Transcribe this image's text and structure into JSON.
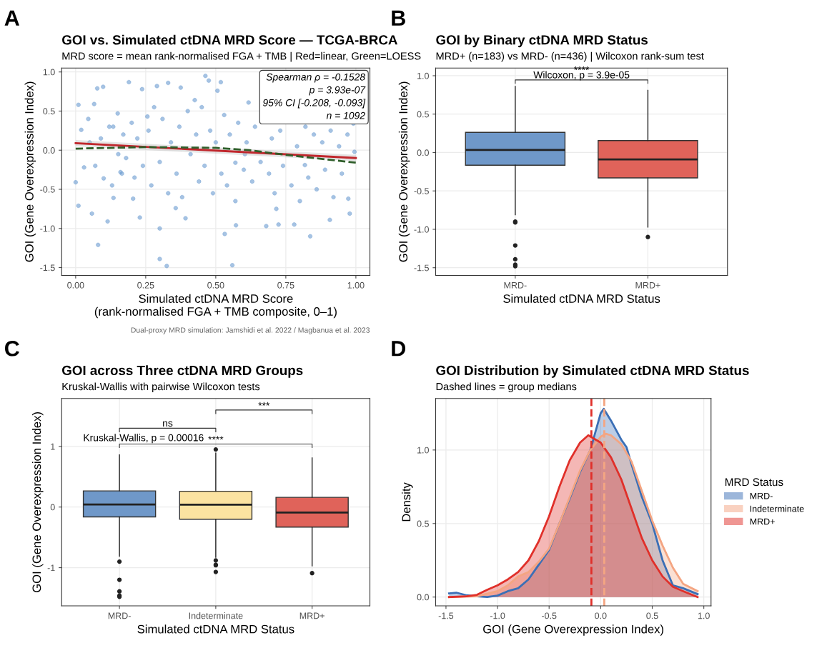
{
  "chart_data": [
    {
      "type": "scatter",
      "title": "GOI vs. Simulated ctDNA MRD Score — TCGA-BRCA",
      "subtitle": "MRD score = mean rank-normalised FGA + TMB | Red=linear, Green=LOESS",
      "xlabel": "Simulated ctDNA MRD Score\n(rank-normalised FGA + TMB composite, 0–1)",
      "ylabel": "GOI (Gene Overexpression Index)",
      "annotations": [
        "A",
        "Spearman ρ = -0.1528\np = 3.93e-07\n95% CI [-0.208, -0.093]\nn = 1092",
        "Dual-proxy MRD simulation: Jamshidi et al. 2022 / Magbanua et al. 2023"
      ],
      "xlim": [
        -0.05,
        1.05
      ],
      "ylim": [
        -1.6,
        1.05
      ],
      "xticks": [
        {
          "value": 0,
          "label": "0.00"
        },
        {
          "value": 0.25,
          "label": "0.25"
        },
        {
          "value": 0.5,
          "label": "0.50"
        },
        {
          "value": 0.75,
          "label": "0.75"
        },
        {
          "value": 1,
          "label": "1.00"
        }
      ],
      "yticks": [
        {
          "value": -1.5,
          "label": "-1.5"
        },
        {
          "value": -1,
          "label": "-1.0"
        },
        {
          "value": -0.5,
          "label": "-0.5"
        },
        {
          "value": 0,
          "label": "0.0"
        },
        {
          "value": 0.5,
          "label": "0.5"
        },
        {
          "value": 1,
          "label": "1.0"
        }
      ],
      "grid": true,
      "series": [
        {
          "type": "scatter",
          "color": "#6b9bd1",
          "marker": "circle",
          "x": [
            0.0,
            0.01,
            0.01,
            0.045,
            0.066,
            0.077,
            0.098,
            0.08,
            0.058,
            0.114,
            0.135,
            0.19,
            0.134,
            0.152,
            0.165,
            0.205,
            0.229,
            0.237,
            0.256,
            0.29,
            0.3,
            0.325,
            0.3,
            0.33,
            0.375,
            0.392,
            0.357,
            0.425,
            0.463,
            0.475,
            0.506,
            0.518,
            0.532,
            0.559,
            0.572,
            0.57,
            0.617,
            0.604,
            0.68,
            0.716,
            0.724,
            0.78,
            0.837,
            0.991,
            0.995,
            0.978,
            0.907,
            0.973,
            0.818,
            0.02,
            0.03,
            0.05,
            0.07,
            0.09,
            0.1,
            0.12,
            0.13,
            0.15,
            0.16,
            0.17,
            0.18,
            0.2,
            0.21,
            0.22,
            0.24,
            0.26,
            0.27,
            0.28,
            0.3,
            0.31,
            0.33,
            0.34,
            0.36,
            0.37,
            0.38,
            0.4,
            0.41,
            0.43,
            0.44,
            0.45,
            0.46,
            0.48,
            0.49,
            0.5,
            0.52,
            0.53,
            0.54,
            0.55,
            0.57,
            0.58,
            0.6,
            0.61,
            0.63,
            0.64,
            0.66,
            0.69,
            0.7,
            0.71,
            0.73,
            0.74,
            0.77,
            0.79,
            0.8,
            0.82,
            0.83,
            0.85,
            0.86,
            0.88,
            0.89,
            0.91,
            0.92,
            0.94,
            0.95,
            0.97
          ],
          "values": [
            -0.41,
            -0.71,
            0.58,
            0.4,
            0.59,
            0.79,
            0.81,
            -1.21,
            -0.81,
            -0.91,
            -0.61,
            0.87,
            0.3,
            -0.05,
            -0.3,
            -0.62,
            -0.86,
            0.78,
            0.43,
            0.82,
            -1.39,
            -1.48,
            -1.0,
            0.86,
            0.8,
            -0.87,
            -0.74,
            0.64,
            0.95,
            0.89,
            0.76,
            0.87,
            -1.07,
            -1.47,
            -0.96,
            -0.16,
            0.61,
            -0.05,
            -0.97,
            -0.75,
            -0.95,
            -0.95,
            -1.1,
            0.34,
            -0.02,
            -0.81,
            -0.89,
            -0.62,
            -0.19,
            0.26,
            -0.22,
            0.1,
            -0.2,
            0.15,
            -0.36,
            0.3,
            -0.45,
            0.47,
            -0.28,
            0.2,
            -0.1,
            0.35,
            -0.35,
            0.15,
            -0.2,
            0.25,
            -0.45,
            0.55,
            -0.15,
            0.4,
            -0.55,
            0.1,
            -0.3,
            0.3,
            -0.6,
            0.5,
            -0.05,
            0.2,
            -0.4,
            0.55,
            -0.2,
            0.25,
            -0.55,
            0.1,
            -0.3,
            0.45,
            -0.45,
            0.2,
            -0.65,
            0.35,
            -0.25,
            0.1,
            -0.4,
            0.3,
            -0.15,
            -0.3,
            0.15,
            -0.55,
            0.25,
            -0.2,
            -0.45,
            0.05,
            -0.65,
            0.3,
            -0.35,
            0.2,
            -0.5,
            0.1,
            -0.25,
            0.25,
            -0.6,
            0.05,
            -0.3,
            0.2
          ]
        },
        {
          "type": "line",
          "color": "#c0272d",
          "x": [
            0,
            1
          ],
          "values": [
            0.09,
            -0.1
          ],
          "lower": [
            0.05,
            -0.14
          ],
          "upper": [
            0.13,
            -0.06
          ],
          "line_style": "solid"
        },
        {
          "type": "line",
          "color": "#2f5e2a",
          "x": [
            0,
            0.25,
            0.5,
            0.62,
            0.75,
            1
          ],
          "values": [
            0.02,
            0.04,
            0.03,
            0.0,
            -0.06,
            -0.16
          ],
          "line_style": "dashed"
        }
      ]
    },
    {
      "type": "box",
      "title": "GOI by Binary ctDNA MRD Status",
      "subtitle": "MRD+ (n=183) vs MRD- (n=436) | Wilcoxon rank-sum test",
      "xlabel": "Simulated ctDNA MRD Status",
      "ylabel": "GOI (Gene Overexpression Index)",
      "annotations": [
        "B",
        "****",
        "Wilcoxon, p = 3.9e-05"
      ],
      "categories": [
        "MRD-",
        "MRD+"
      ],
      "colors": [
        "#6f98c9",
        "#e0635a"
      ],
      "ylim": [
        -1.6,
        1.1
      ],
      "yticks": [
        {
          "value": -1.5,
          "label": "-1.5"
        },
        {
          "value": -1,
          "label": "-1.0"
        },
        {
          "value": -0.5,
          "label": "-0.5"
        },
        {
          "value": 0,
          "label": "0.0"
        },
        {
          "value": 0.5,
          "label": "0.5"
        },
        {
          "value": 1,
          "label": "1.0"
        }
      ],
      "grid": true,
      "boxes": [
        {
          "low": -0.81,
          "q1": -0.165,
          "median": 0.033,
          "q3": 0.263,
          "high": 0.86,
          "outliers": [
            -0.9,
            -0.91,
            -1.21,
            -1.39,
            -1.46,
            -1.48
          ]
        },
        {
          "low": -0.97,
          "q1": -0.33,
          "median": -0.09,
          "q3": 0.156,
          "high": 0.81,
          "outliers": [
            -1.1
          ]
        }
      ]
    },
    {
      "type": "box",
      "title": "GOI across Three ctDNA MRD Groups",
      "subtitle": "Kruskal-Wallis with pairwise Wilcoxon tests",
      "xlabel": "Simulated ctDNA MRD Status",
      "ylabel": "GOI (Gene Overexpression Index)",
      "annotations": [
        "C",
        "ns",
        "***",
        "****",
        "Kruskal-Wallis, p = 0.00016"
      ],
      "categories": [
        "MRD-",
        "Indeterminate",
        "MRD+"
      ],
      "colors": [
        "#6f98c9",
        "#fbe3a1",
        "#e0635a"
      ],
      "ylim": [
        -1.63,
        1.79
      ],
      "yticks": [
        {
          "value": -1,
          "label": "-1"
        },
        0,
        1
      ],
      "grid": true,
      "boxes": [
        {
          "low": -0.81,
          "q1": -0.162,
          "median": 0.043,
          "q3": 0.266,
          "high": 0.86,
          "outliers": [
            -0.9,
            -1.2,
            -1.39,
            -1.46,
            -1.48
          ]
        },
        {
          "low": -0.83,
          "q1": -0.2,
          "median": 0.04,
          "q3": 0.26,
          "high": 0.89,
          "outliers": [
            0.95,
            -0.88,
            -0.95,
            -0.96,
            -1.07
          ]
        },
        {
          "low": -0.97,
          "q1": -0.33,
          "median": -0.09,
          "q3": 0.16,
          "high": 0.81,
          "outliers": [
            -1.09
          ]
        }
      ]
    },
    {
      "type": "area",
      "title": "GOI Distribution by Simulated ctDNA MRD Status",
      "subtitle": "Dashed lines = group medians",
      "xlabel": "GOI (Gene Overexpression Index)",
      "ylabel": "Density",
      "legend_title": "MRD Status",
      "legend": "right",
      "annotations": [
        "D"
      ],
      "xlim": [
        -1.6,
        1.07
      ],
      "ylim": [
        -0.06,
        1.35
      ],
      "xticks": [
        {
          "value": -1.5,
          "label": "-1.5"
        },
        {
          "value": -1,
          "label": "-1.0"
        },
        {
          "value": -0.5,
          "label": "-0.5"
        },
        {
          "value": 0,
          "label": "0.0"
        },
        {
          "value": 0.5,
          "label": "0.5"
        },
        {
          "value": 1,
          "label": "1.0"
        }
      ],
      "yticks": [
        {
          "value": 0,
          "label": "0.0"
        },
        0.5,
        {
          "value": 1,
          "label": "1.0"
        }
      ],
      "grid": true,
      "ref_lines": [
        {
          "axis": "x",
          "value": -0.09,
          "color": "#e0302a",
          "line_style": "dashed"
        },
        {
          "axis": "x",
          "value": 0.035,
          "color": "#f4a582",
          "line_style": "dashed"
        }
      ],
      "series": [
        {
          "name": "MRD-",
          "color": "#3b6fb6",
          "x": [
            -1.47,
            -1.4,
            -1.3,
            -1.2,
            -1.1,
            -1.0,
            -0.9,
            -0.8,
            -0.7,
            -0.6,
            -0.5,
            -0.4,
            -0.3,
            -0.2,
            -0.1,
            0,
            0.03,
            0.1,
            0.2,
            0.25,
            0.3,
            0.4,
            0.5,
            0.6,
            0.7,
            0.8,
            0.94
          ],
          "values": [
            0.025,
            0.03,
            0.012,
            0.005,
            0.0,
            0.01,
            0.04,
            0.06,
            0.12,
            0.22,
            0.32,
            0.5,
            0.67,
            0.85,
            1.0,
            1.25,
            1.28,
            1.2,
            1.07,
            1.02,
            0.9,
            0.68,
            0.5,
            0.25,
            0.08,
            0.06,
            0.02
          ]
        },
        {
          "name": "Indeterminate",
          "color": "#f4a582",
          "x": [
            -1.47,
            -1.2,
            -1.0,
            -0.9,
            -0.8,
            -0.7,
            -0.6,
            -0.5,
            -0.4,
            -0.3,
            -0.2,
            -0.1,
            0,
            0.05,
            0.1,
            0.2,
            0.3,
            0.4,
            0.5,
            0.6,
            0.7,
            0.8,
            0.94
          ],
          "values": [
            0.0,
            0.005,
            0.04,
            0.08,
            0.14,
            0.17,
            0.24,
            0.33,
            0.5,
            0.68,
            0.86,
            1.0,
            1.09,
            1.11,
            1.1,
            1.04,
            0.92,
            0.72,
            0.52,
            0.35,
            0.2,
            0.09,
            0.04
          ]
        },
        {
          "name": "MRD+",
          "color": "#e0302a",
          "x": [
            -1.47,
            -1.3,
            -1.2,
            -1.1,
            -1.0,
            -0.9,
            -0.8,
            -0.7,
            -0.6,
            -0.5,
            -0.4,
            -0.3,
            -0.2,
            -0.12,
            0,
            0.1,
            0.2,
            0.3,
            0.4,
            0.5,
            0.6,
            0.7,
            0.8,
            0.94
          ],
          "values": [
            0.0,
            0.005,
            0.015,
            0.05,
            0.08,
            0.12,
            0.17,
            0.25,
            0.38,
            0.55,
            0.75,
            0.93,
            1.05,
            1.1,
            1.05,
            0.95,
            0.8,
            0.6,
            0.4,
            0.25,
            0.14,
            0.07,
            0.04,
            0.0
          ]
        }
      ]
    }
  ]
}
